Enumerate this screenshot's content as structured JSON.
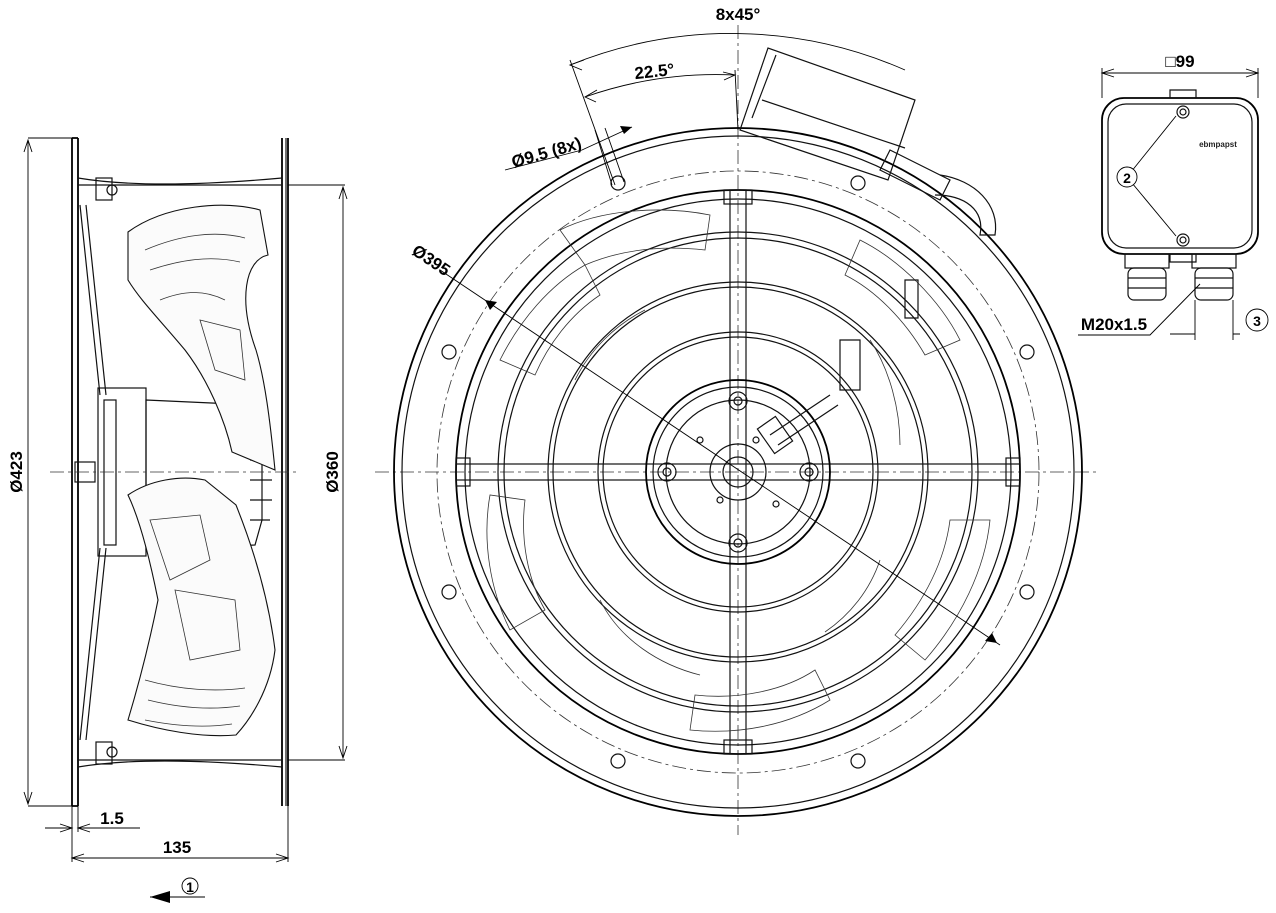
{
  "dimensions": {
    "bolt_count_angle": "8x45°",
    "offset_angle": "22.5°",
    "hole_diameter": "Ø9.5 (8x)",
    "bolt_circle_diameter": "Ø395",
    "overall_diameter": "Ø423",
    "inner_diameter": "Ø360",
    "flange_thickness": "1.5",
    "overall_depth": "135",
    "terminal_box_size": "□99",
    "cable_gland_thread": "M20x1.5",
    "brand_on_box": "ebmpapst"
  },
  "callouts": {
    "airflow": "1",
    "box_screws": "2",
    "gland_spacing": "3"
  }
}
